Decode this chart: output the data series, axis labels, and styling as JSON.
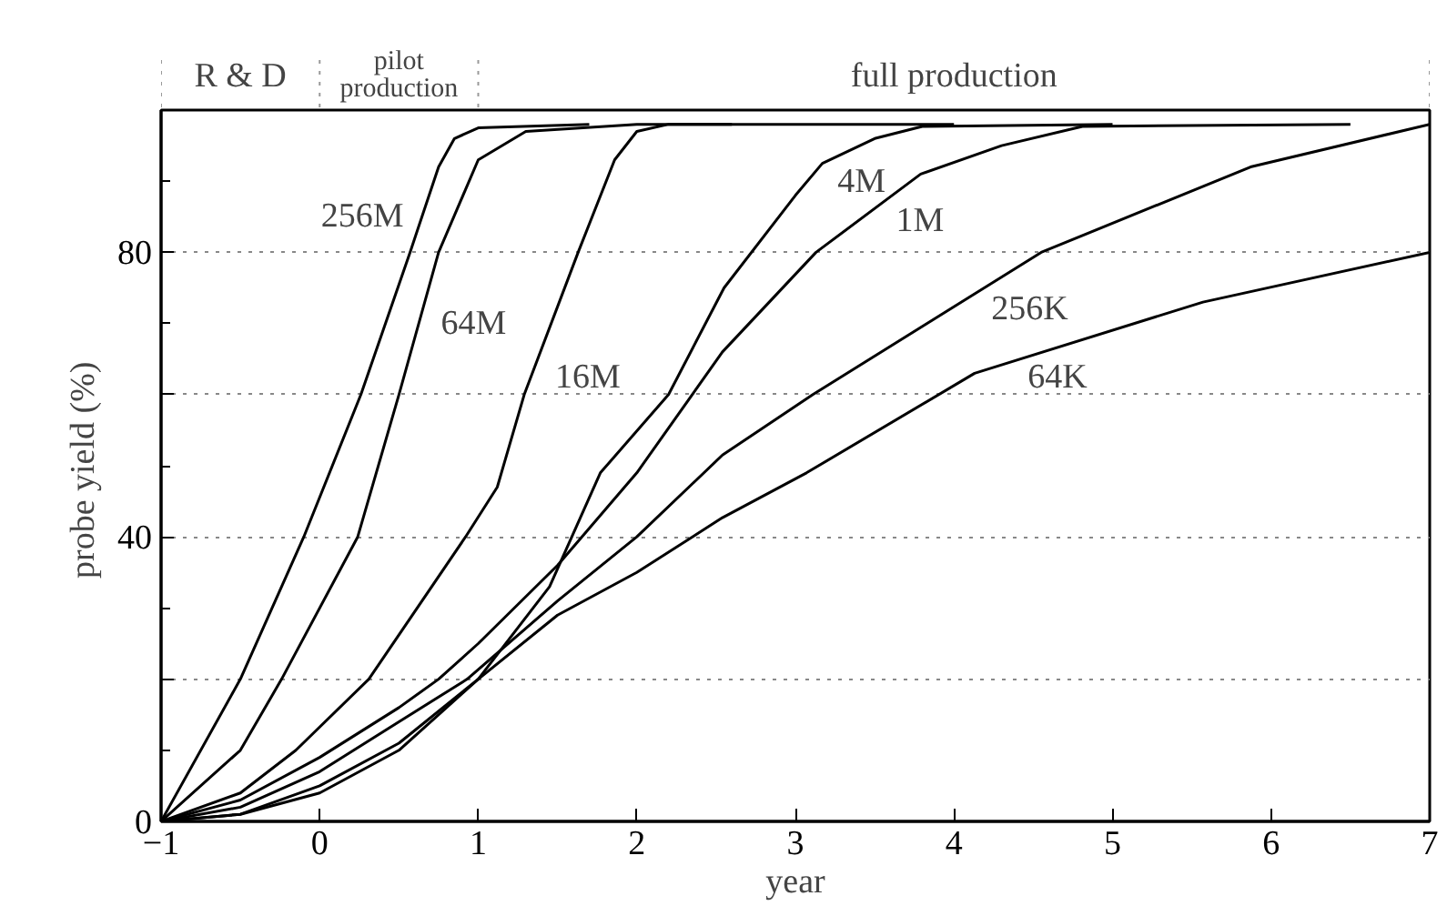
{
  "chart_data": {
    "type": "line",
    "xlabel": "year",
    "ylabel": "probe yield  (%)",
    "xlim": [
      -1,
      7
    ],
    "xticks": [
      -1,
      0,
      1,
      2,
      3,
      4,
      5,
      6,
      7
    ],
    "ylim": [
      0,
      100
    ],
    "yticks": [
      0,
      {
        "value": 20,
        "label": null
      },
      40,
      {
        "value": 60,
        "label": null
      },
      80,
      {
        "value": 100,
        "label": null
      }
    ],
    "grid": "y",
    "line_style": "solid",
    "series": [
      {
        "color": "#000000",
        "x": [
          -1,
          -0.5,
          -0.1,
          0.26,
          0.57,
          0.75,
          0.85,
          1.0,
          1.7
        ],
        "values": [
          0,
          20,
          40,
          60,
          80,
          92,
          96,
          97.5,
          98
        ]
      },
      {
        "color": "#000000",
        "x": [
          -1,
          -0.5,
          -0.24,
          0.24,
          0.5,
          0.75,
          1.0,
          1.3,
          2,
          2.6
        ],
        "values": [
          0,
          10,
          20,
          40,
          60,
          80,
          93,
          97,
          98,
          98
        ]
      },
      {
        "color": "#000000",
        "x": [
          -1,
          -0.5,
          -0.15,
          0.31,
          0.92,
          1.12,
          1.29,
          1.63,
          1.86,
          2.0,
          2.2,
          4.0
        ],
        "values": [
          0,
          4,
          10,
          20,
          40,
          47,
          60,
          80,
          93,
          97,
          98,
          98
        ]
      },
      {
        "color": "#000000",
        "x": [
          -1,
          -0.5,
          0,
          0.5,
          1,
          1.45,
          1.77,
          2.2,
          2.55,
          3.0,
          3.17,
          3.5,
          3.8,
          5.0
        ],
        "values": [
          0,
          1,
          4,
          10,
          20,
          33,
          49,
          60,
          75,
          88,
          92.5,
          96,
          97.7,
          98
        ]
      },
      {
        "color": "#000000",
        "x": [
          -1,
          -0.5,
          0,
          0.5,
          0.75,
          1,
          1.5,
          2,
          2.54,
          3.13,
          3.79,
          4.3,
          4.81,
          6.5
        ],
        "values": [
          0,
          3,
          9,
          16,
          20,
          25,
          36,
          49,
          66,
          80,
          91,
          95,
          97.7,
          98
        ]
      },
      {
        "color": "#000000",
        "x": [
          -1,
          -0.5,
          0,
          0.5,
          0.93,
          1.5,
          2,
          2.54,
          3.11,
          4.55,
          5.87,
          7
        ],
        "values": [
          0,
          2,
          7,
          14,
          20,
          31,
          40,
          51.5,
          60,
          80,
          92,
          98
        ]
      },
      {
        "color": "#000000",
        "x": [
          -1,
          -0.5,
          0,
          0.5,
          1,
          1.5,
          2,
          2.54,
          3.07,
          4.13,
          5.57,
          7
        ],
        "values": [
          0,
          1,
          5,
          11,
          20,
          29,
          35,
          42.7,
          49,
          63,
          73,
          80
        ]
      }
    ],
    "annotations": [
      "R & D",
      "pilot production",
      "full production",
      {
        "text": "256M",
        "x": 0.645,
        "y": 85
      },
      {
        "text": "64M",
        "x": 0.65,
        "y": 72
      },
      {
        "text": "16M",
        "x": 1.37,
        "y": 64.5
      },
      {
        "text": "4M",
        "x": 3.15,
        "y": 92
      },
      {
        "text": "1M",
        "x": 3.52,
        "y": 86.5
      },
      {
        "text": "256K",
        "x": 4.12,
        "y": 74
      },
      {
        "text": "64K",
        "x": 4.35,
        "y": 64.5
      }
    ]
  }
}
